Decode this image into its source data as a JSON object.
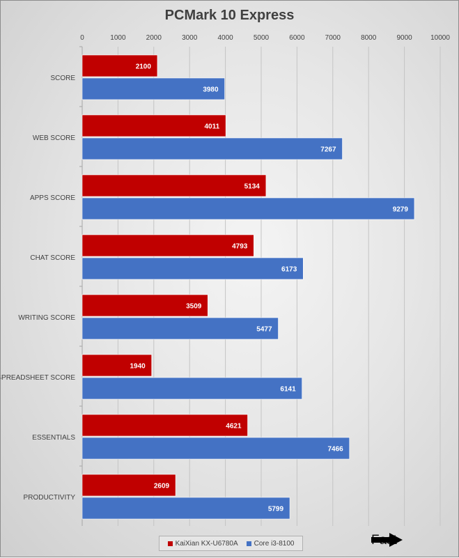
{
  "chart_data": {
    "type": "bar",
    "orientation": "horizontal",
    "title": "PCMark 10 Express",
    "categories": [
      "SCORE",
      "WEB SCORE",
      "APPS SCORE",
      "CHAT SCORE",
      "WRITING SCORE",
      "SPREADSHEET SCORE",
      "ESSENTIALS",
      "PRODUCTIVITY"
    ],
    "series": [
      {
        "name": "KaiXian KX-U6780A",
        "color": "#c00000",
        "values": [
          2100,
          4011,
          5134,
          4793,
          3509,
          1940,
          4621,
          2609
        ]
      },
      {
        "name": "Core i3-8100",
        "color": "#4472c4",
        "values": [
          3980,
          7267,
          9279,
          6173,
          5477,
          6141,
          7466,
          5799
        ]
      }
    ],
    "xlim": [
      0,
      10000
    ],
    "xticks": [
      0,
      1000,
      2000,
      3000,
      4000,
      5000,
      6000,
      7000,
      8000,
      9000,
      10000
    ],
    "x_axis_position": "top",
    "grid": true,
    "data_labels": true,
    "legend_position": "bottom"
  },
  "annotation": {
    "label": "Fast",
    "icon": "right-arrow-icon"
  }
}
